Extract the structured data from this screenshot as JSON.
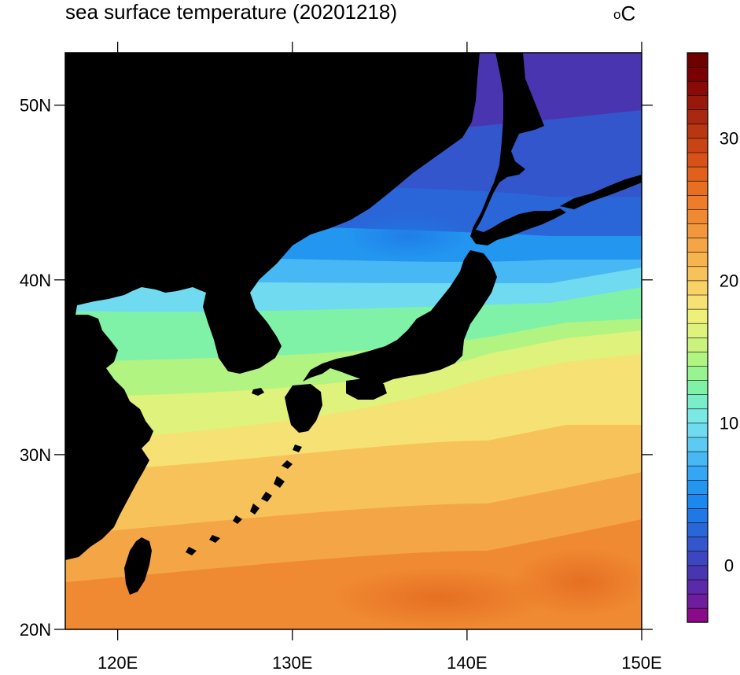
{
  "title": "sea surface temperature (20201218)",
  "units": {
    "sup": "o",
    "main": "C"
  },
  "map": {
    "lon_range": [
      117,
      150
    ],
    "lat_range": [
      20,
      53
    ],
    "land_color": "#000000",
    "lon_ticks": [
      {
        "value": 120,
        "label": "120E"
      },
      {
        "value": 130,
        "label": "130E"
      },
      {
        "value": 140,
        "label": "140E"
      },
      {
        "value": 150,
        "label": "150E"
      }
    ],
    "lat_ticks": [
      {
        "value": 20,
        "label": "20N"
      },
      {
        "value": 30,
        "label": "30N"
      },
      {
        "value": 40,
        "label": "40N"
      },
      {
        "value": 50,
        "label": "50N"
      }
    ]
  },
  "colorbar": {
    "min": -4,
    "max": 36,
    "interval": 1,
    "tick_labels": [
      {
        "value": 0,
        "label": "0"
      },
      {
        "value": 10,
        "label": "10"
      },
      {
        "value": 20,
        "label": "20"
      },
      {
        "value": 30,
        "label": "30"
      }
    ],
    "colors": [
      "#8b0a8a",
      "#6f1d9e",
      "#5a2aa8",
      "#4a35b0",
      "#3d46c0",
      "#3356cc",
      "#2a66d8",
      "#1f78e6",
      "#1a88ee",
      "#2396f0",
      "#35a6f4",
      "#48b8f4",
      "#5ccaf2",
      "#70daf0",
      "#7ae8e4",
      "#7aeec8",
      "#80f2a8",
      "#98f490",
      "#b2f482",
      "#cbf27c",
      "#def27c",
      "#eef07a",
      "#f6e274",
      "#f8d266",
      "#f8c25a",
      "#f6b44e",
      "#f4a646",
      "#f2983c",
      "#f08a32",
      "#ee7c2a",
      "#e86e22",
      "#e0601c",
      "#d65218",
      "#c84414",
      "#b83612",
      "#a82810",
      "#98180c",
      "#8a0a08",
      "#7a0004",
      "#6e0000"
    ]
  }
}
